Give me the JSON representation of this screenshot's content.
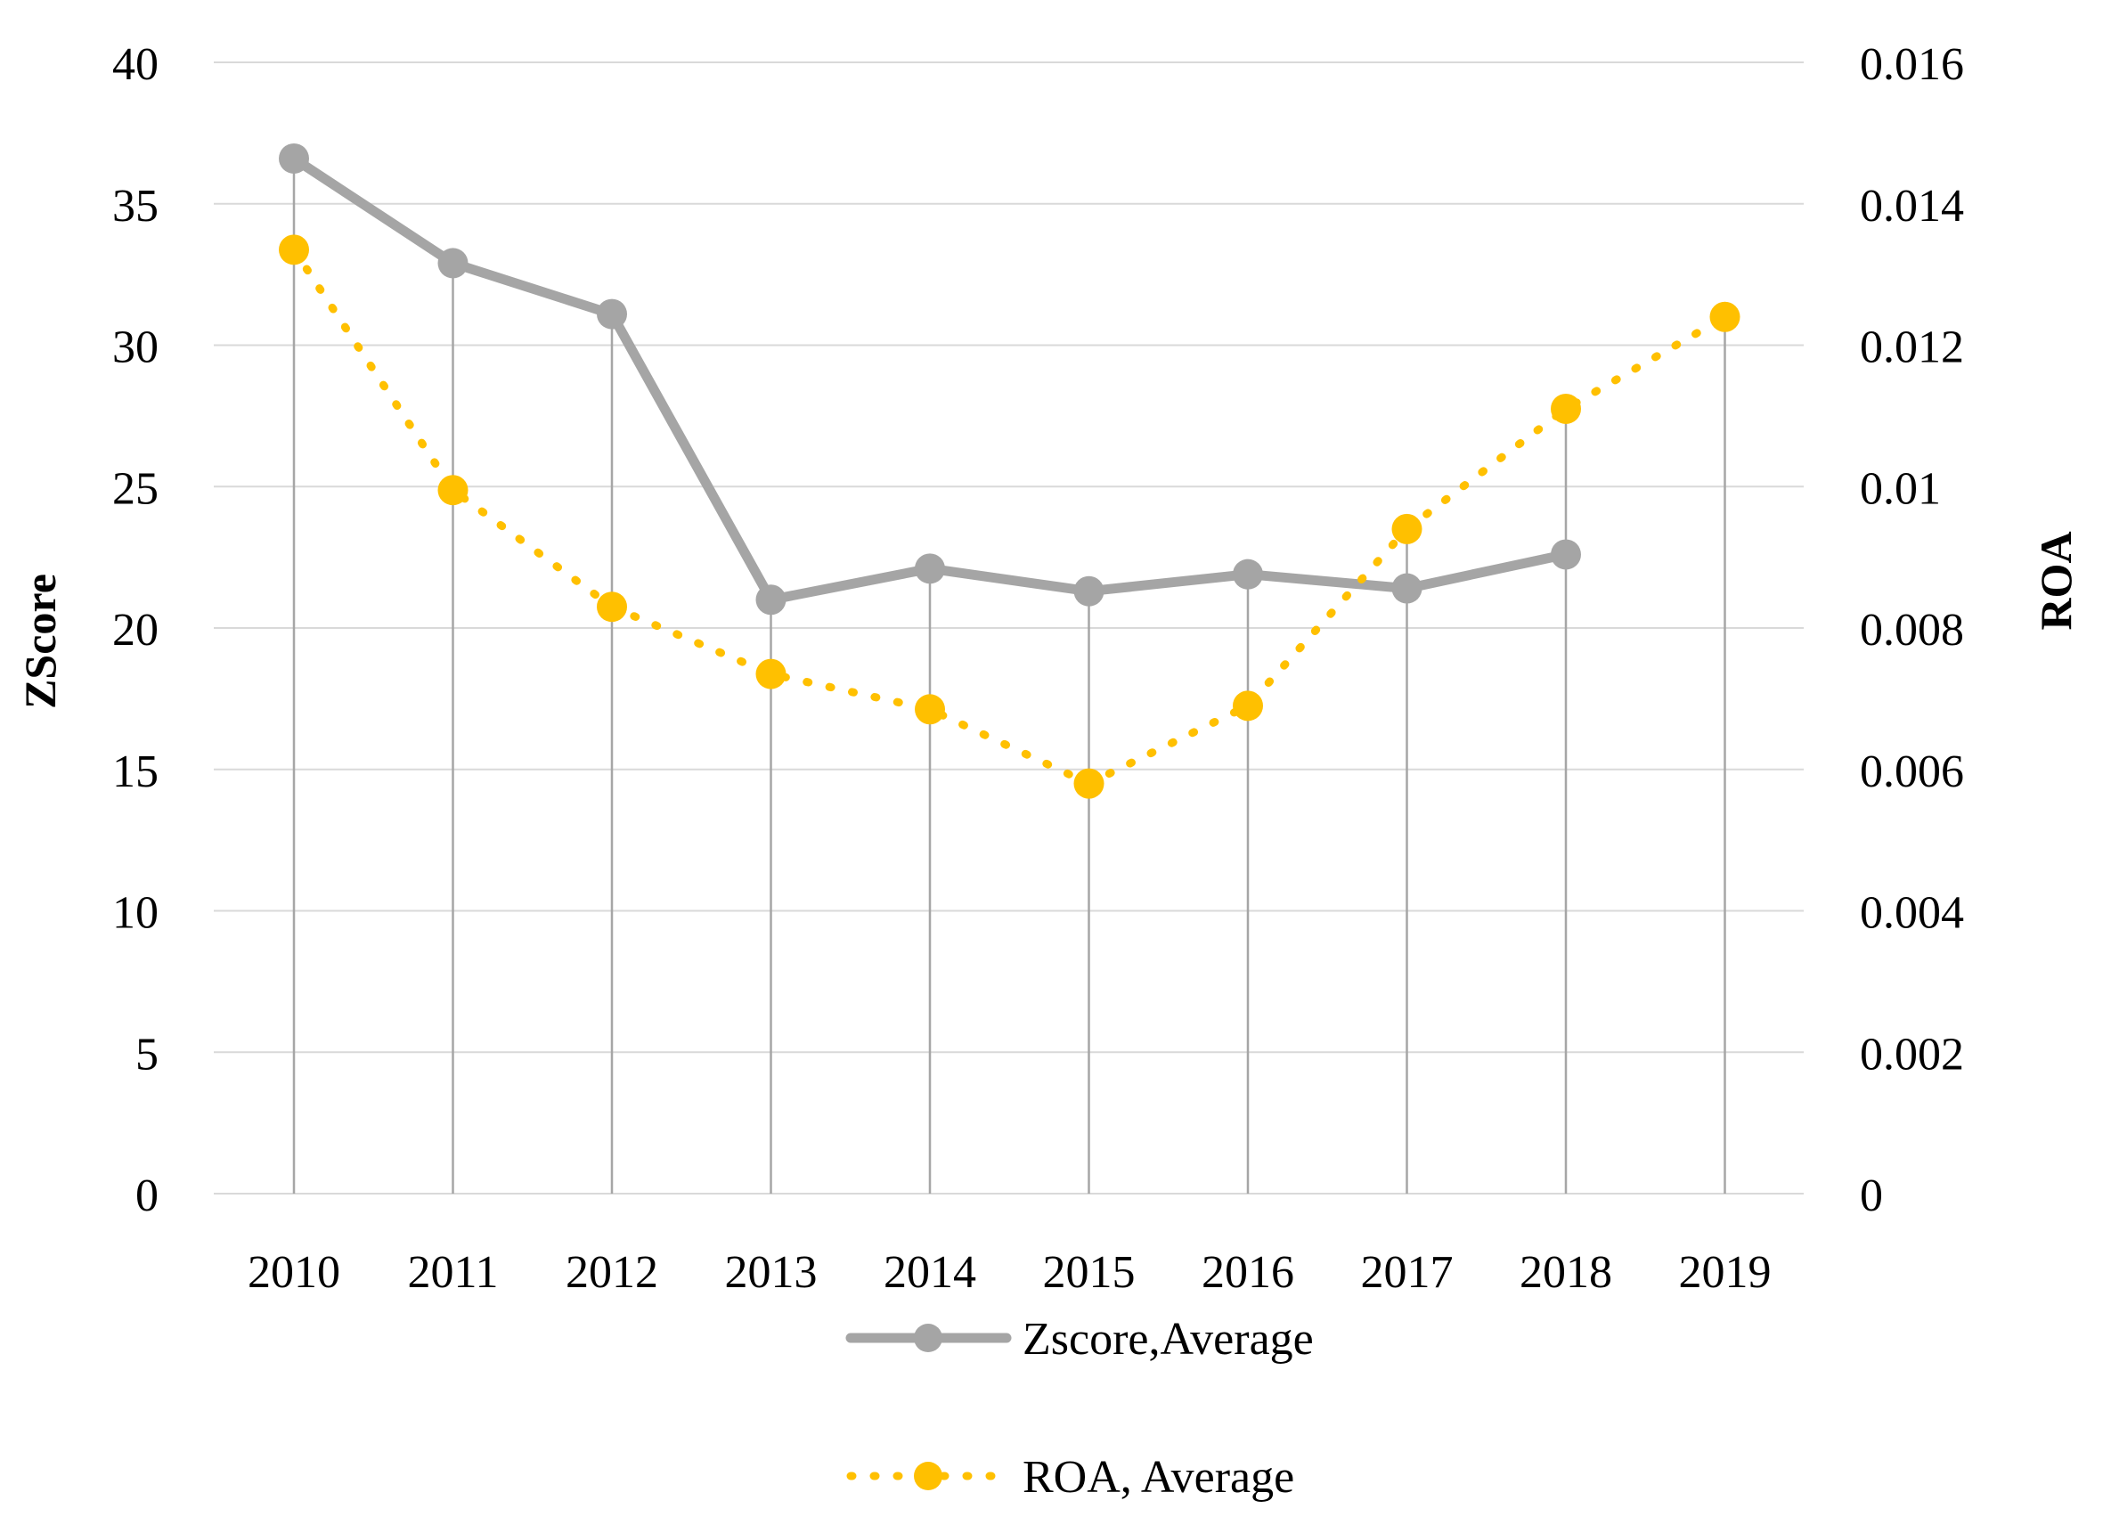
{
  "chart_data": {
    "type": "line",
    "title": "",
    "categories": [
      "2010",
      "2011",
      "2012",
      "2013",
      "2014",
      "2015",
      "2016",
      "2017",
      "2018",
      "2019"
    ],
    "y_left": {
      "label": "ZScore",
      "min": 0,
      "max": 40,
      "step": 5,
      "tick_labels": [
        "0",
        "5",
        "10",
        "15",
        "20",
        "25",
        "30",
        "35",
        "40"
      ]
    },
    "y_right": {
      "label": "ROA",
      "min": 0,
      "max": 0.016,
      "step": 0.002,
      "tick_labels": [
        "0",
        "0.002",
        "0.004",
        "0.006",
        "0.008",
        "0.01",
        "0.012",
        "0.014",
        "0.016"
      ]
    },
    "series": [
      {
        "name": "Zscore,Average",
        "axis": "left",
        "style": "solid",
        "color": "#a5a5a5",
        "values": [
          36.6,
          32.9,
          31.1,
          21.0,
          22.1,
          21.3,
          21.9,
          21.4,
          22.6,
          null
        ]
      },
      {
        "name": "ROA, Average",
        "axis": "right",
        "style": "dotted",
        "color": "#ffc000",
        "values": [
          0.01335,
          0.00995,
          0.0083,
          0.00735,
          0.00685,
          0.0058,
          0.0069,
          0.0094,
          0.0111,
          0.0124
        ]
      }
    ],
    "grid": true,
    "legend_position": "bottom"
  },
  "colors": {
    "grid": "#d9d9d9",
    "drop_line": "#a6a6a6",
    "text": "#000000"
  }
}
